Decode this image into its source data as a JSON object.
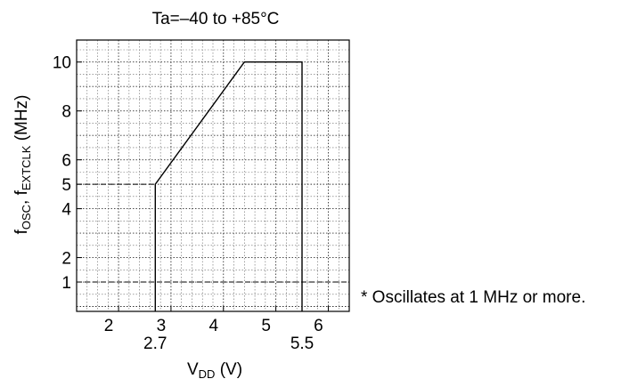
{
  "chart_data": {
    "type": "line",
    "title": "Ta=–40 to +85°C",
    "xlabel": {
      "main": "V",
      "sub": "DD",
      "unit": " (V)"
    },
    "ylabel": {
      "f1": "f",
      "s1": "OSC",
      "mid": ", f",
      "s2": "EXTCLK",
      "unit": " (MHz)"
    },
    "xlim": [
      1.2,
      6.4
    ],
    "ylim": [
      -0.2,
      10.9
    ],
    "grid": true,
    "x_ticks": [
      {
        "value": 2,
        "label": "2"
      },
      {
        "value": 3,
        "label": "3"
      },
      {
        "value": 4,
        "label": "4"
      },
      {
        "value": 5,
        "label": "5"
      },
      {
        "value": 6,
        "label": "6"
      }
    ],
    "x_extra_labels": [
      {
        "value": 2.7,
        "label": "2.7"
      },
      {
        "value": 5.5,
        "label": "5.5"
      }
    ],
    "y_ticks": [
      {
        "value": 1,
        "label": "1"
      },
      {
        "value": 2,
        "label": "2"
      },
      {
        "value": 4,
        "label": "4"
      },
      {
        "value": 5,
        "label": "5"
      },
      {
        "value": 6,
        "label": "6"
      },
      {
        "value": 8,
        "label": "8"
      },
      {
        "value": 10,
        "label": "10"
      }
    ],
    "boundary": {
      "x": [
        2.7,
        2.7,
        4.4,
        5.5,
        5.5
      ],
      "y": [
        -0.2,
        5,
        10,
        10,
        -0.2
      ]
    },
    "reference_lines": [
      {
        "orientation": "horizontal",
        "value": 1
      },
      {
        "orientation": "horizontal",
        "value": 5,
        "x_from": 1.2,
        "x_to": 2.7
      }
    ],
    "annotation": "* Oscillates at 1 MHz or more."
  }
}
